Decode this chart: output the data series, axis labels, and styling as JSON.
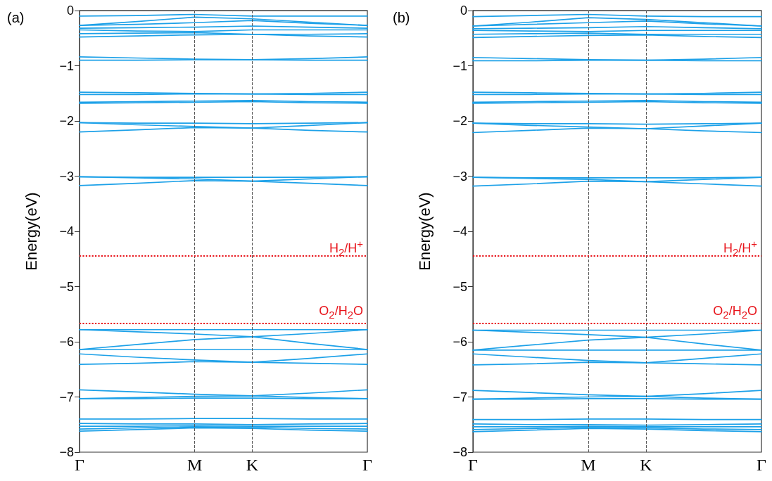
{
  "chart_data": [
    {
      "type": "line",
      "title": "(a)",
      "ylabel": "Energy(eV)",
      "line_style": "solid",
      "marker": "none",
      "grid": false,
      "categories": [
        "Γ",
        null,
        "M",
        "K",
        null,
        "Γ"
      ],
      "ylim": [
        -8,
        0
      ],
      "yticks": [
        {
          "value": -8,
          "label": "−8"
        },
        {
          "value": -7,
          "label": "−7"
        },
        {
          "value": -6,
          "label": "−6"
        },
        {
          "value": -5,
          "label": "−5"
        },
        {
          "value": -4,
          "label": "−4"
        },
        {
          "value": -3,
          "label": "−3"
        },
        {
          "value": -2,
          "label": "−2"
        },
        {
          "value": -1,
          "label": "−1"
        },
        0
      ],
      "series": [
        {
          "color": "#1da1e8",
          "values": [
            -0.1,
            -0.09,
            -0.07,
            -0.1,
            -0.1,
            -0.1
          ]
        },
        {
          "color": "#1da1e8",
          "values": [
            -0.27,
            -0.2,
            -0.12,
            -0.15,
            -0.21,
            -0.27
          ]
        },
        {
          "color": "#1da1e8",
          "values": [
            -0.27,
            -0.25,
            -0.22,
            -0.18,
            -0.23,
            -0.27
          ]
        },
        {
          "color": "#1da1e8",
          "values": [
            -0.32,
            -0.31,
            -0.3,
            -0.28,
            -0.3,
            -0.32
          ]
        },
        {
          "color": "#1da1e8",
          "values": [
            -0.35,
            -0.37,
            -0.38,
            -0.35,
            -0.35,
            -0.35
          ]
        },
        {
          "color": "#1da1e8",
          "values": [
            -0.42,
            -0.41,
            -0.4,
            -0.43,
            -0.43,
            -0.42
          ]
        },
        {
          "color": "#1da1e8",
          "values": [
            -0.48,
            -0.46,
            -0.44,
            -0.43,
            -0.46,
            -0.48
          ]
        },
        {
          "color": "#1da1e8",
          "values": [
            -0.84,
            -0.86,
            -0.88,
            -0.89,
            -0.87,
            -0.84
          ]
        },
        {
          "color": "#1da1e8",
          "values": [
            -0.9,
            -0.9,
            -0.89,
            -0.89,
            -0.9,
            -0.9
          ]
        },
        {
          "color": "#1da1e8",
          "values": [
            -1.48,
            -1.49,
            -1.5,
            -1.51,
            -1.5,
            -1.48
          ]
        },
        {
          "color": "#1da1e8",
          "values": [
            -1.52,
            -1.52,
            -1.51,
            -1.51,
            -1.52,
            -1.52
          ]
        },
        {
          "color": "#1da1e8",
          "values": [
            -1.66,
            -1.65,
            -1.64,
            -1.63,
            -1.65,
            -1.66
          ]
        },
        {
          "color": "#1da1e8",
          "values": [
            -1.68,
            -1.67,
            -1.66,
            -1.65,
            -1.67,
            -1.68
          ]
        },
        {
          "color": "#1da1e8",
          "values": [
            -2.03,
            -2.04,
            -2.04,
            -2.05,
            -2.04,
            -2.03
          ]
        },
        {
          "color": "#1da1e8",
          "values": [
            -2.03,
            -2.07,
            -2.1,
            -2.13,
            -2.08,
            -2.03
          ]
        },
        {
          "color": "#1da1e8",
          "values": [
            -2.2,
            -2.16,
            -2.12,
            -2.13,
            -2.17,
            -2.2
          ]
        },
        {
          "color": "#1da1e8",
          "values": [
            -3.01,
            -3.02,
            -3.02,
            -3.02,
            -3.02,
            -3.01
          ]
        },
        {
          "color": "#1da1e8",
          "values": [
            -3.17,
            -3.13,
            -3.08,
            -3.09,
            -3.13,
            -3.17
          ]
        },
        {
          "color": "#1da1e8",
          "values": [
            -3.01,
            -3.03,
            -3.05,
            -3.09,
            -3.05,
            -3.01
          ]
        },
        {
          "color": "#1da1e8",
          "values": [
            -5.78,
            -5.78,
            -5.78,
            -5.78,
            -5.78,
            -5.78
          ]
        },
        {
          "color": "#1da1e8",
          "values": [
            -5.78,
            -5.82,
            -5.86,
            -5.91,
            -6.03,
            -6.14
          ]
        },
        {
          "color": "#1da1e8",
          "values": [
            -6.14,
            -6.05,
            -5.96,
            -5.91,
            -5.85,
            -5.78
          ]
        },
        {
          "color": "#1da1e8",
          "values": [
            -6.14,
            -6.14,
            -6.14,
            -6.14,
            -6.14,
            -6.14
          ]
        },
        {
          "color": "#1da1e8",
          "values": [
            -6.22,
            -6.28,
            -6.33,
            -6.37,
            -6.3,
            -6.22
          ]
        },
        {
          "color": "#1da1e8",
          "values": [
            -6.41,
            -6.39,
            -6.36,
            -6.37,
            -6.39,
            -6.41
          ]
        },
        {
          "color": "#1da1e8",
          "values": [
            -6.87,
            -6.91,
            -6.95,
            -6.98,
            -6.93,
            -6.87
          ]
        },
        {
          "color": "#1da1e8",
          "values": [
            -7.03,
            -7.01,
            -6.99,
            -6.98,
            -7.01,
            -7.03
          ]
        },
        {
          "color": "#1da1e8",
          "values": [
            -7.03,
            -7.03,
            -7.02,
            -7.02,
            -7.03,
            -7.03
          ]
        },
        {
          "color": "#1da1e8",
          "values": [
            -7.4,
            -7.4,
            -7.39,
            -7.39,
            -7.4,
            -7.4
          ]
        },
        {
          "color": "#1da1e8",
          "values": [
            -7.48,
            -7.49,
            -7.49,
            -7.5,
            -7.49,
            -7.48
          ]
        },
        {
          "color": "#1da1e8",
          "values": [
            -7.53,
            -7.53,
            -7.52,
            -7.53,
            -7.53,
            -7.53
          ]
        },
        {
          "color": "#1da1e8",
          "values": [
            -7.58,
            -7.56,
            -7.54,
            -7.55,
            -7.57,
            -7.58
          ]
        },
        {
          "color": "#1da1e8",
          "values": [
            -7.62,
            -7.59,
            -7.56,
            -7.57,
            -7.6,
            -7.62
          ]
        }
      ],
      "ref_lines": [
        {
          "axis": "x",
          "value": "M",
          "label": null,
          "color": "#555555",
          "line_style": "dashed"
        },
        {
          "axis": "x",
          "value": "K",
          "label": null,
          "color": "#555555",
          "line_style": "dashed"
        },
        {
          "axis": "y",
          "value": -4.44,
          "label": "H$_{2}$/H$^{+}$",
          "color": "#e8141b",
          "line_style": "dotted"
        },
        {
          "axis": "y",
          "value": -5.66,
          "label": "O$_{2}$/H$_{2}$O",
          "color": "#e8141b",
          "line_style": "dotted"
        }
      ]
    },
    {
      "type": "line",
      "title": "(b)",
      "ylabel": "Energy(eV)",
      "line_style": "solid",
      "marker": "none",
      "grid": false,
      "categories": [
        "Γ",
        null,
        "M",
        "K",
        null,
        "Γ"
      ],
      "ylim": [
        -8,
        0
      ],
      "yticks": [
        {
          "value": -8,
          "label": "−8"
        },
        {
          "value": -7,
          "label": "−7"
        },
        {
          "value": -6,
          "label": "−6"
        },
        {
          "value": -5,
          "label": "−5"
        },
        {
          "value": -4,
          "label": "−4"
        },
        {
          "value": -3,
          "label": "−3"
        },
        {
          "value": -2,
          "label": "−2"
        },
        {
          "value": -1,
          "label": "−1"
        },
        0
      ],
      "series": [
        {
          "color": "#1da1e8",
          "values": [
            -0.11,
            -0.09,
            -0.07,
            -0.1,
            -0.11,
            -0.11
          ]
        },
        {
          "color": "#1da1e8",
          "values": [
            -0.28,
            -0.21,
            -0.13,
            -0.16,
            -0.22,
            -0.28
          ]
        },
        {
          "color": "#1da1e8",
          "values": [
            -0.28,
            -0.25,
            -0.22,
            -0.19,
            -0.24,
            -0.28
          ]
        },
        {
          "color": "#1da1e8",
          "values": [
            -0.33,
            -0.32,
            -0.31,
            -0.29,
            -0.31,
            -0.33
          ]
        },
        {
          "color": "#1da1e8",
          "values": [
            -0.36,
            -0.37,
            -0.38,
            -0.36,
            -0.36,
            -0.36
          ]
        },
        {
          "color": "#1da1e8",
          "values": [
            -0.43,
            -0.42,
            -0.41,
            -0.43,
            -0.43,
            -0.43
          ]
        },
        {
          "color": "#1da1e8",
          "values": [
            -0.49,
            -0.47,
            -0.45,
            -0.44,
            -0.47,
            -0.49
          ]
        },
        {
          "color": "#1da1e8",
          "values": [
            -0.85,
            -0.87,
            -0.89,
            -0.9,
            -0.88,
            -0.85
          ]
        },
        {
          "color": "#1da1e8",
          "values": [
            -0.91,
            -0.91,
            -0.9,
            -0.9,
            -0.91,
            -0.91
          ]
        },
        {
          "color": "#1da1e8",
          "values": [
            -1.48,
            -1.49,
            -1.5,
            -1.51,
            -1.5,
            -1.48
          ]
        },
        {
          "color": "#1da1e8",
          "values": [
            -1.52,
            -1.52,
            -1.51,
            -1.51,
            -1.52,
            -1.52
          ]
        },
        {
          "color": "#1da1e8",
          "values": [
            -1.66,
            -1.65,
            -1.64,
            -1.63,
            -1.65,
            -1.66
          ]
        },
        {
          "color": "#1da1e8",
          "values": [
            -1.68,
            -1.67,
            -1.66,
            -1.65,
            -1.67,
            -1.68
          ]
        },
        {
          "color": "#1da1e8",
          "values": [
            -2.04,
            -2.05,
            -2.05,
            -2.06,
            -2.05,
            -2.04
          ]
        },
        {
          "color": "#1da1e8",
          "values": [
            -2.04,
            -2.08,
            -2.11,
            -2.14,
            -2.09,
            -2.04
          ]
        },
        {
          "color": "#1da1e8",
          "values": [
            -2.21,
            -2.17,
            -2.13,
            -2.14,
            -2.18,
            -2.21
          ]
        },
        {
          "color": "#1da1e8",
          "values": [
            -3.02,
            -3.03,
            -3.03,
            -3.03,
            -3.03,
            -3.02
          ]
        },
        {
          "color": "#1da1e8",
          "values": [
            -3.18,
            -3.14,
            -3.09,
            -3.1,
            -3.14,
            -3.18
          ]
        },
        {
          "color": "#1da1e8",
          "values": [
            -3.02,
            -3.04,
            -3.06,
            -3.1,
            -3.06,
            -3.02
          ]
        },
        {
          "color": "#1da1e8",
          "values": [
            -5.79,
            -5.79,
            -5.79,
            -5.79,
            -5.79,
            -5.79
          ]
        },
        {
          "color": "#1da1e8",
          "values": [
            -5.79,
            -5.83,
            -5.87,
            -5.92,
            -6.04,
            -6.15
          ]
        },
        {
          "color": "#1da1e8",
          "values": [
            -6.15,
            -6.06,
            -5.97,
            -5.92,
            -5.86,
            -5.79
          ]
        },
        {
          "color": "#1da1e8",
          "values": [
            -6.15,
            -6.15,
            -6.15,
            -6.15,
            -6.15,
            -6.15
          ]
        },
        {
          "color": "#1da1e8",
          "values": [
            -6.22,
            -6.28,
            -6.34,
            -6.38,
            -6.3,
            -6.22
          ]
        },
        {
          "color": "#1da1e8",
          "values": [
            -6.42,
            -6.4,
            -6.37,
            -6.38,
            -6.4,
            -6.42
          ]
        },
        {
          "color": "#1da1e8",
          "values": [
            -6.88,
            -6.92,
            -6.96,
            -6.99,
            -6.94,
            -6.88
          ]
        },
        {
          "color": "#1da1e8",
          "values": [
            -7.04,
            -7.02,
            -7.0,
            -6.99,
            -7.02,
            -7.04
          ]
        },
        {
          "color": "#1da1e8",
          "values": [
            -7.04,
            -7.04,
            -7.03,
            -7.03,
            -7.04,
            -7.04
          ]
        },
        {
          "color": "#1da1e8",
          "values": [
            -7.41,
            -7.41,
            -7.4,
            -7.4,
            -7.41,
            -7.41
          ]
        },
        {
          "color": "#1da1e8",
          "values": [
            -7.49,
            -7.5,
            -7.5,
            -7.51,
            -7.5,
            -7.49
          ]
        },
        {
          "color": "#1da1e8",
          "values": [
            -7.54,
            -7.54,
            -7.53,
            -7.54,
            -7.54,
            -7.54
          ]
        },
        {
          "color": "#1da1e8",
          "values": [
            -7.59,
            -7.57,
            -7.55,
            -7.56,
            -7.58,
            -7.59
          ]
        },
        {
          "color": "#1da1e8",
          "values": [
            -7.63,
            -7.6,
            -7.57,
            -7.58,
            -7.61,
            -7.63
          ]
        }
      ],
      "ref_lines": [
        {
          "axis": "x",
          "value": "M",
          "label": null,
          "color": "#555555",
          "line_style": "dashed"
        },
        {
          "axis": "x",
          "value": "K",
          "label": null,
          "color": "#555555",
          "line_style": "dashed"
        },
        {
          "axis": "y",
          "value": -4.44,
          "label": "H$_{2}$/H$^{+}$",
          "color": "#e8141b",
          "line_style": "dotted"
        },
        {
          "axis": "y",
          "value": -5.66,
          "label": "O$_{2}$/H$_{2}$O",
          "color": "#e8141b",
          "line_style": "dotted"
        }
      ]
    }
  ]
}
